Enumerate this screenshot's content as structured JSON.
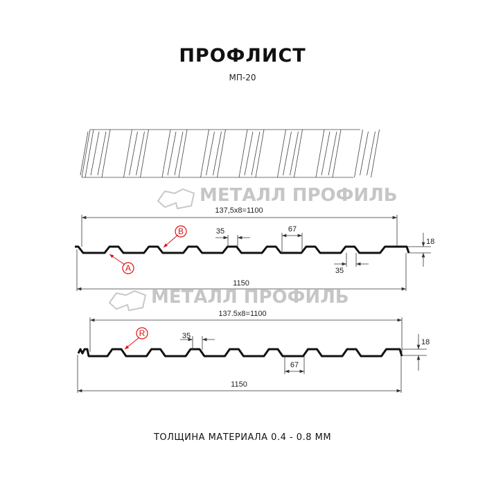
{
  "title": "ПРОФЛИСТ",
  "subtitle": "МП-20",
  "footer": "ТОЛЩИНА МАТЕРИАЛА 0.4 - 0.8 ММ",
  "watermark": "МЕТАЛЛ ПРОФИЛЬ",
  "colors": {
    "profile": "#111111",
    "marker": "#e01010",
    "watermark": "#bdbdbd"
  },
  "profile1": {
    "pitch_label": "137,5x8=1100",
    "width_label": "1150",
    "rib_top_label": "35",
    "rib_bottom_label": "35",
    "trough_label": "67",
    "height_label": "18",
    "marker_a": "A",
    "marker_b": "B"
  },
  "profile2": {
    "pitch_label": "137.5x8=1100",
    "width_label": "1150",
    "rib_top_label": "35",
    "trough_label": "67",
    "height_label": "18",
    "marker_r": "R"
  }
}
